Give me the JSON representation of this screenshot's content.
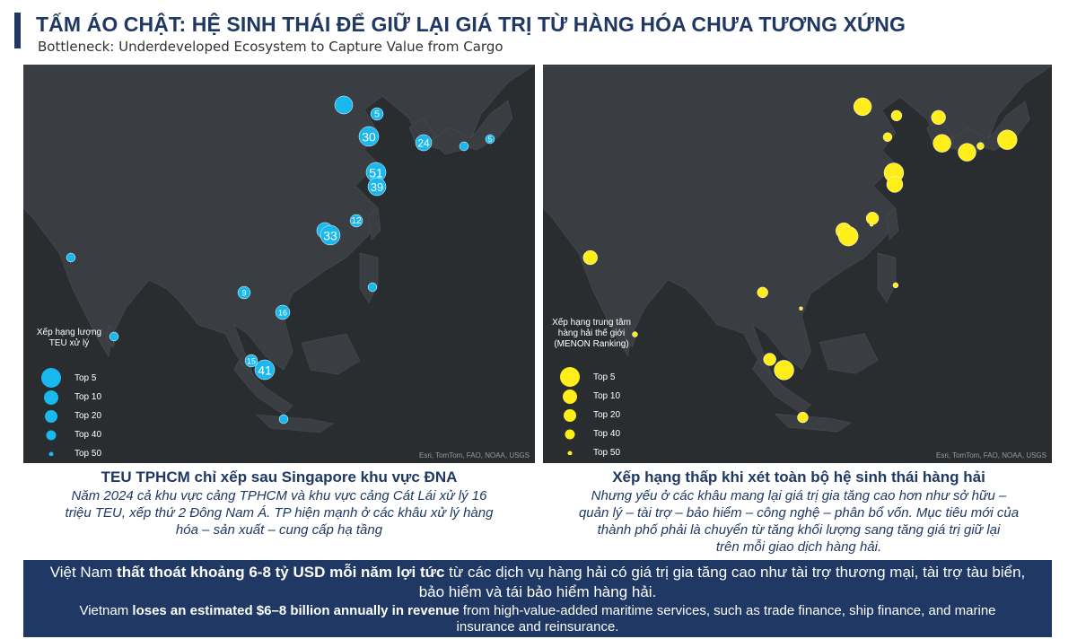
{
  "header": {
    "title": "TẤM ÁO CHẬT: HỆ SINH THÁI ĐỂ GIỮ LẠI GIÁ TRỊ TỪ HÀNG HÓA CHƯA TƯƠNG XỨNG",
    "subtitle": "Bottleneck: Underdeveloped Ecosystem to Capture Value from Cargo"
  },
  "left_map": {
    "bubble_color": "#19b9f0",
    "legend_title": "Xếp hạng lượng TEU xử lý",
    "legend": [
      "Top 5",
      "Top 10",
      "Top 20",
      "Top 40",
      "Top 50"
    ],
    "credit": "Esri, TomTom, FAO, NOAA, USGS",
    "rank_labels": [
      "5",
      "30",
      "24",
      "5",
      "51",
      "39",
      "12",
      "33",
      "9",
      "16",
      "15",
      "41"
    ],
    "caption_title": "TEU TPHCM chỉ xếp sau Singapore khu vực ĐNA",
    "caption_lines": [
      "Năm 2024 cả khu vực cảng TPHCM và khu vực cảng Cát Lái xử lý 16",
      "triệu TEU, xếp thứ 2 Đông Nam Á. TP hiện mạnh ở các khâu xử lý hàng",
      "hóa – sản xuất – cung cấp hạ tầng"
    ]
  },
  "right_map": {
    "bubble_color": "#ffee1a",
    "legend_title": "Xếp hạng trung tâm hàng hải thế giới (MENON Ranking)",
    "legend": [
      "Top 5",
      "Top 10",
      "Top 20",
      "Top 40",
      "Top 50"
    ],
    "credit": "Esri, TomTom, FAO, NOAA, USGS",
    "caption_title": "Xếp hạng thấp khi xét toàn bộ hệ sinh thái hàng hải",
    "caption_lines": [
      "Nhưng yếu ở các khâu mang lại giá trị gia tăng cao hơn như sở hữu –",
      "quản lý – tài trợ – bảo hiểm – công nghệ – phân bổ vốn. Mục tiêu mới của",
      "thành phố phải là chuyển từ tăng khối lượng sang tăng giá trị giữ lại",
      "trên mỗi giao dịch hàng hải."
    ]
  },
  "banner": {
    "vi_prefix": "Việt Nam ",
    "vi_bold": "thất thoát khoảng 6-8 tỷ USD mỗi năm lợi tức",
    "vi_rest": " từ các dịch vụ hàng hải có giá trị gia tăng cao như tài trợ thương mại, tài trợ tàu biển, bảo hiểm và tái bảo hiểm hàng hải.",
    "en_prefix": "Vietnam ",
    "en_bold": "loses an estimated $6–8 billion annually in revenue",
    "en_rest": " from high-value-added maritime services, such as trade finance, ship finance, and marine insurance and reinsurance."
  },
  "colors": {
    "navy": "#1f3864",
    "map_bg": "#2a2d30",
    "land": "#3a3d41"
  }
}
